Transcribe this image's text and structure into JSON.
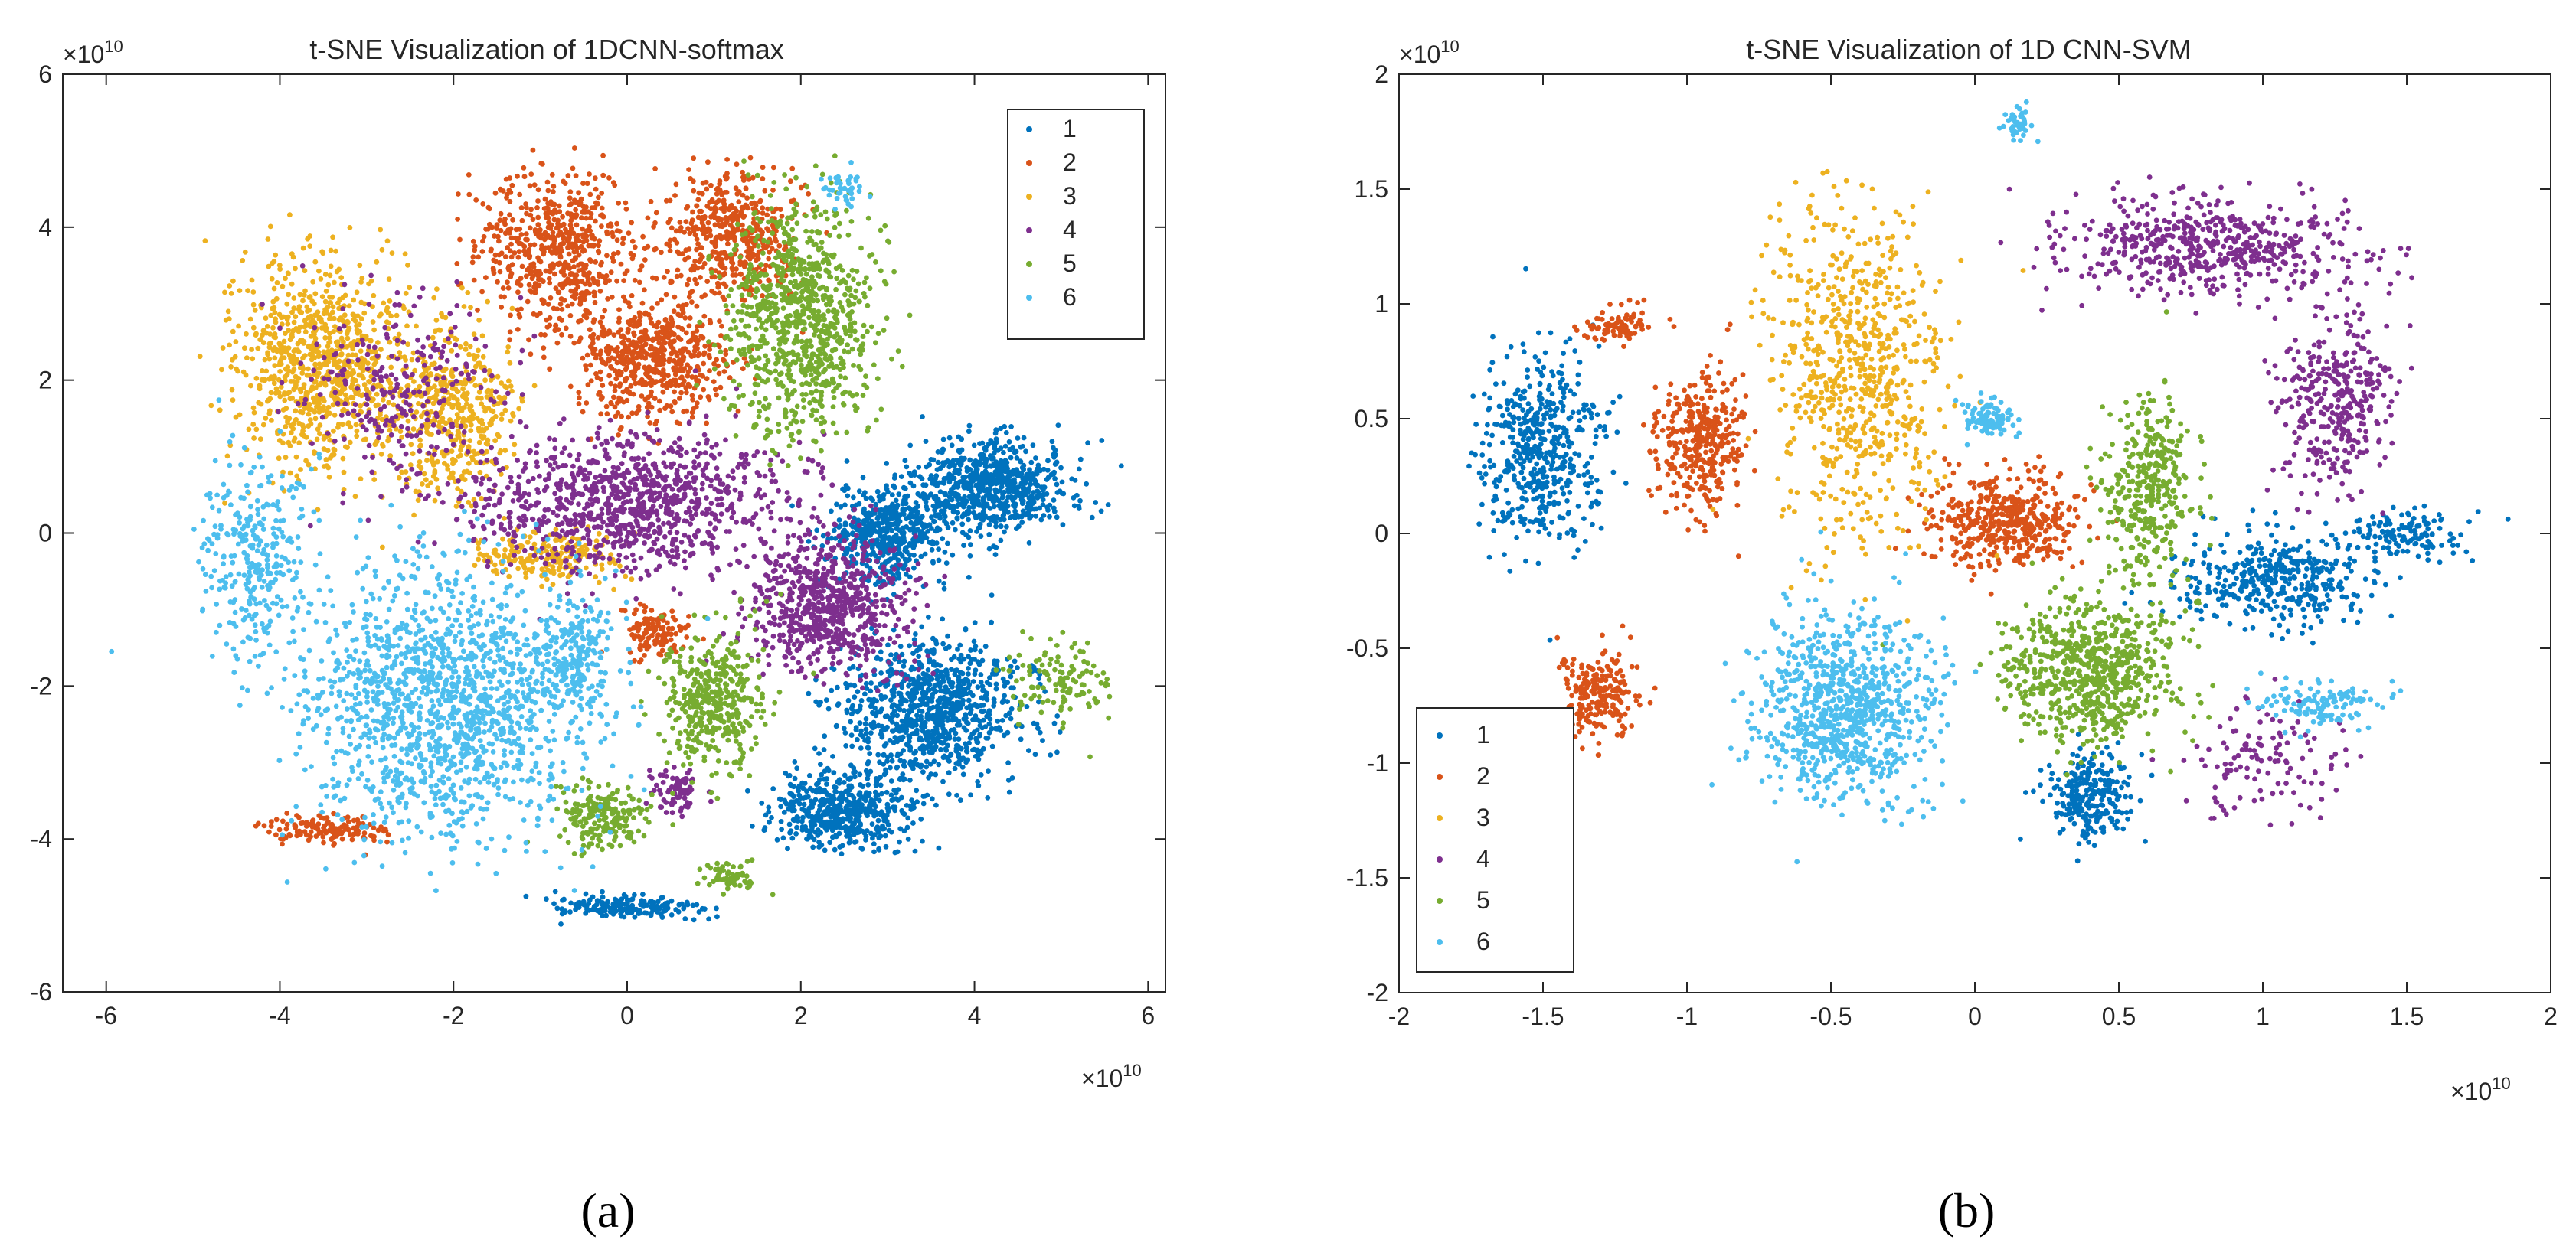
{
  "colors": {
    "1": "#0072BD",
    "2": "#D95319",
    "3": "#EDB120",
    "4": "#7E2F8E",
    "5": "#77AC30",
    "6": "#4DBEEE",
    "axis": "#262626",
    "text": "#262626"
  },
  "chart_data": [
    {
      "type": "scatter",
      "title": "t-SNE Visualization of 1DCNN-softmax",
      "caption": "(a)",
      "xlabel": "",
      "ylabel": "",
      "x_exponent": "×10",
      "x_exponent_power": "10",
      "y_exponent": "×10",
      "y_exponent_power": "10",
      "xlim": [
        -6.5,
        6.2
      ],
      "ylim": [
        -6,
        6
      ],
      "x_ticks": [
        "-6",
        "-4",
        "-2",
        "0",
        "2",
        "4",
        "6"
      ],
      "x_tick_values": [
        -6,
        -4,
        -2,
        0,
        2,
        4,
        6
      ],
      "y_ticks": [
        "-6",
        "-4",
        "-2",
        "0",
        "2",
        "4",
        "6"
      ],
      "y_tick_values": [
        -6,
        -4,
        -2,
        0,
        2,
        4,
        6
      ],
      "legend": {
        "position": "top-right",
        "entries": [
          "1",
          "2",
          "3",
          "4",
          "5",
          "6"
        ]
      },
      "series": [
        {
          "name": "1",
          "color_key": "1",
          "clusters": [
            [
              4.2,
              0.6,
              0.9,
              0.6,
              700
            ],
            [
              3.0,
              0.0,
              0.7,
              0.6,
              500
            ],
            [
              3.5,
              -2.3,
              1.0,
              0.9,
              900
            ],
            [
              2.5,
              -3.6,
              0.8,
              0.5,
              500
            ],
            [
              0.0,
              -4.9,
              0.8,
              0.15,
              180
            ]
          ]
        },
        {
          "name": "2",
          "color_key": "2",
          "clusters": [
            [
              -0.8,
              3.7,
              0.9,
              1.0,
              600
            ],
            [
              1.2,
              3.9,
              0.7,
              0.8,
              450
            ],
            [
              0.3,
              2.3,
              0.9,
              0.8,
              600
            ],
            [
              0.3,
              -1.3,
              0.35,
              0.3,
              120
            ],
            [
              -3.4,
              -3.9,
              0.7,
              0.2,
              140
            ]
          ]
        },
        {
          "name": "3",
          "color_key": "3",
          "clusters": [
            [
              -3.5,
              2.2,
              1.0,
              1.3,
              900
            ],
            [
              -2.0,
              1.6,
              0.7,
              1.1,
              450
            ],
            [
              -0.9,
              -0.3,
              0.8,
              0.3,
              200
            ]
          ]
        },
        {
          "name": "4",
          "color_key": "4",
          "clusters": [
            [
              0.0,
              0.4,
              1.8,
              0.9,
              1000
            ],
            [
              2.3,
              -0.9,
              0.9,
              0.9,
              700
            ],
            [
              -2.6,
              1.8,
              1.1,
              1.2,
              260
            ],
            [
              0.6,
              -3.4,
              0.3,
              0.3,
              80
            ]
          ]
        },
        {
          "name": "5",
          "color_key": "5",
          "clusters": [
            [
              2.0,
              2.8,
              0.8,
              1.5,
              900
            ],
            [
              1.0,
              -2.2,
              0.6,
              0.9,
              400
            ],
            [
              -0.3,
              -3.7,
              0.5,
              0.4,
              200
            ],
            [
              5.0,
              -2.0,
              0.6,
              0.6,
              120
            ],
            [
              1.2,
              -4.5,
              0.3,
              0.2,
              60
            ]
          ]
        },
        {
          "name": "6",
          "color_key": "6",
          "clusters": [
            [
              -2.1,
              -2.2,
              1.6,
              1.7,
              1500
            ],
            [
              -4.3,
              -0.3,
              0.6,
              1.3,
              300
            ],
            [
              -0.6,
              -1.6,
              0.5,
              0.8,
              200
            ],
            [
              2.5,
              4.5,
              0.2,
              0.3,
              40
            ]
          ]
        }
      ]
    },
    {
      "type": "scatter",
      "title": "t-SNE Visualization of 1D CNN-SVM",
      "caption": "(b)",
      "xlabel": "",
      "ylabel": "",
      "x_exponent": "×10",
      "x_exponent_power": "10",
      "y_exponent": "×10",
      "y_exponent_power": "10",
      "xlim": [
        -2,
        2
      ],
      "ylim": [
        -2,
        2
      ],
      "x_ticks": [
        "-2",
        "-1.5",
        "-1",
        "-0.5",
        "0",
        "0.5",
        "1",
        "1.5",
        "2"
      ],
      "x_tick_values": [
        -2,
        -1.5,
        -1,
        -0.5,
        0,
        0.5,
        1,
        1.5,
        2
      ],
      "y_ticks": [
        "-2",
        "-1.5",
        "-1",
        "-0.5",
        "0",
        "0.5",
        "1",
        "1.5",
        "2"
      ],
      "y_tick_values": [
        -2,
        -1.5,
        -1,
        -0.5,
        0,
        0.5,
        1,
        1.5,
        2
      ],
      "legend": {
        "position": "bottom-left",
        "entries": [
          "1",
          "2",
          "3",
          "4",
          "5",
          "6"
        ]
      },
      "series": [
        {
          "name": "1",
          "color_key": "1",
          "clusters": [
            [
              -1.5,
              0.35,
              0.2,
              0.4,
              500
            ],
            [
              1.05,
              -0.2,
              0.35,
              0.2,
              400
            ],
            [
              0.4,
              -1.15,
              0.15,
              0.2,
              250
            ],
            [
              1.5,
              0.0,
              0.2,
              0.1,
              120
            ]
          ]
        },
        {
          "name": "2",
          "color_key": "2",
          "clusters": [
            [
              -0.95,
              0.4,
              0.15,
              0.3,
              350
            ],
            [
              0.1,
              0.05,
              0.25,
              0.2,
              450
            ],
            [
              -1.3,
              -0.7,
              0.15,
              0.2,
              220
            ],
            [
              -1.25,
              0.9,
              0.1,
              0.08,
              80
            ]
          ]
        },
        {
          "name": "3",
          "color_key": "3",
          "clusters": [
            [
              -0.4,
              0.7,
              0.3,
              0.7,
              700
            ]
          ]
        },
        {
          "name": "4",
          "color_key": "4",
          "clusters": [
            [
              0.8,
              1.25,
              0.5,
              0.2,
              550
            ],
            [
              1.25,
              0.6,
              0.2,
              0.4,
              350
            ],
            [
              1.0,
              -1.0,
              0.3,
              0.25,
              120
            ]
          ]
        },
        {
          "name": "5",
          "color_key": "5",
          "clusters": [
            [
              0.4,
              -0.6,
              0.3,
              0.3,
              700
            ],
            [
              0.6,
              0.2,
              0.15,
              0.4,
              350
            ]
          ]
        },
        {
          "name": "6",
          "color_key": "6",
          "clusters": [
            [
              -0.45,
              -0.75,
              0.3,
              0.4,
              850
            ],
            [
              0.05,
              0.5,
              0.08,
              0.08,
              100
            ],
            [
              1.2,
              -0.75,
              0.2,
              0.1,
              120
            ],
            [
              0.15,
              1.78,
              0.05,
              0.08,
              40
            ]
          ]
        }
      ]
    }
  ]
}
